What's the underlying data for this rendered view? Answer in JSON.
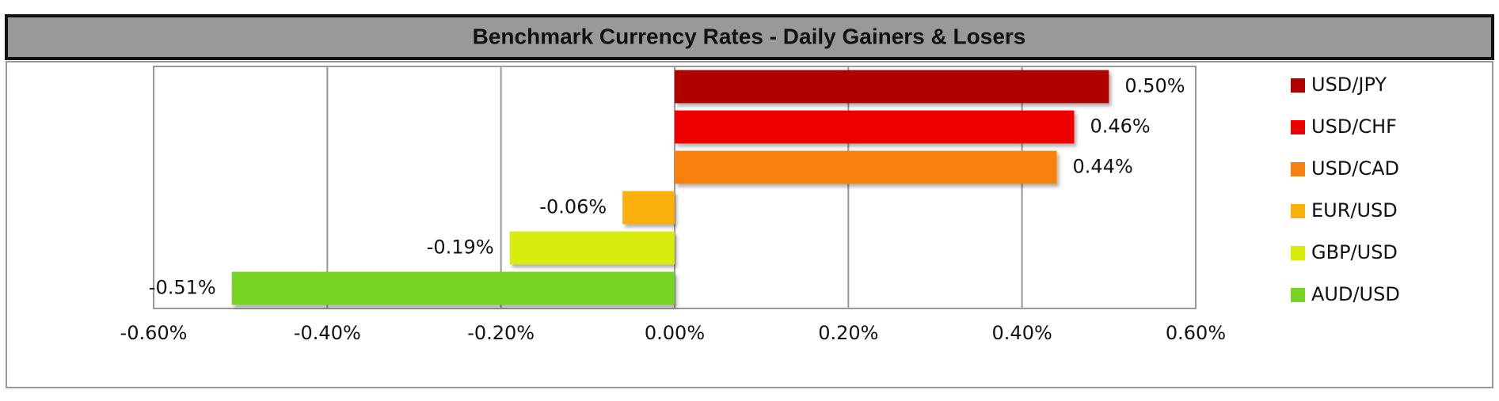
{
  "chart_data": {
    "type": "bar",
    "orientation": "horizontal",
    "title": "Benchmark Currency Rates - Daily Gainers & Losers",
    "categories": [
      "USD/JPY",
      "USD/CHF",
      "USD/CAD",
      "EUR/USD",
      "GBP/USD",
      "AUD/USD"
    ],
    "values": [
      0.5,
      0.46,
      0.44,
      -0.06,
      -0.19,
      -0.51
    ],
    "value_labels": [
      "0.50%",
      "0.46%",
      "0.44%",
      "-0.06%",
      "-0.19%",
      "-0.51%"
    ],
    "colors": [
      "#b00000",
      "#ee0000",
      "#f98010",
      "#f9b008",
      "#d8ec08",
      "#78d420"
    ],
    "xlim": [
      -0.6,
      0.6
    ],
    "xticks": [
      {
        "value": -0.6,
        "label": "-0.60%"
      },
      {
        "value": -0.4,
        "label": "-0.40%"
      },
      {
        "value": -0.2,
        "label": "-0.20%"
      },
      {
        "value": 0,
        "label": "0.00%"
      },
      {
        "value": 0.2,
        "label": "0.20%"
      },
      {
        "value": 0.4,
        "label": "0.40%"
      },
      {
        "value": 0.6,
        "label": "0.60%"
      }
    ],
    "grid": true,
    "legend": "right"
  }
}
